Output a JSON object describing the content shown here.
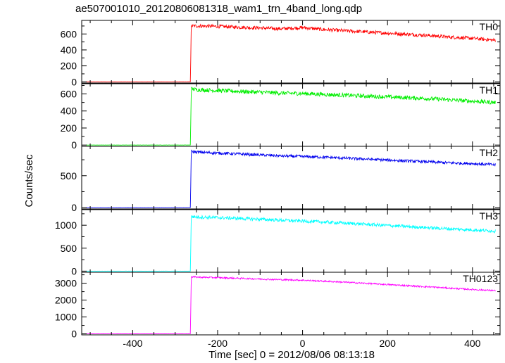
{
  "title": "ae507001010_20120806081318_wam1_trn_4band_long.qdp",
  "xlabel": "Time [sec] 0 = 2012/08/06 08:13:18",
  "ylabel": "Counts/sec",
  "chart_data": [
    {
      "type": "line",
      "name": "TH0",
      "color": "#ff0000",
      "xlim": [
        -520,
        465
      ],
      "ylim": [
        -15,
        770
      ],
      "yticks": [
        0,
        200,
        400,
        600
      ],
      "x": [
        -510,
        -270,
        -264,
        -262,
        -250,
        -200,
        -150,
        -100,
        -50,
        0,
        50,
        100,
        150,
        200,
        250,
        300,
        350,
        400,
        455
      ],
      "y": [
        0,
        0,
        0,
        700,
        700,
        695,
        685,
        675,
        665,
        680,
        655,
        640,
        625,
        610,
        595,
        580,
        560,
        545,
        520
      ],
      "noise": 22,
      "xticks": [
        -400,
        -200,
        0,
        200,
        400
      ]
    },
    {
      "type": "line",
      "name": "TH1",
      "color": "#00ee00",
      "xlim": [
        -520,
        465
      ],
      "ylim": [
        -15,
        720
      ],
      "yticks": [
        0,
        200,
        400,
        600
      ],
      "x": [
        -510,
        -270,
        -264,
        -262,
        -250,
        -200,
        -150,
        -100,
        -50,
        0,
        50,
        100,
        150,
        200,
        250,
        300,
        350,
        400,
        455
      ],
      "y": [
        0,
        0,
        0,
        660,
        650,
        640,
        630,
        620,
        610,
        605,
        595,
        585,
        575,
        565,
        555,
        545,
        530,
        515,
        500
      ],
      "noise": 24
    },
    {
      "type": "line",
      "name": "TH2",
      "color": "#0000ee",
      "xlim": [
        -520,
        465
      ],
      "ylim": [
        -20,
        960
      ],
      "yticks": [
        0,
        500
      ],
      "x": [
        -510,
        -270,
        -264,
        -262,
        -250,
        -200,
        -150,
        -100,
        -50,
        0,
        50,
        100,
        150,
        200,
        250,
        300,
        350,
        400,
        455
      ],
      "y": [
        0,
        0,
        0,
        880,
        870,
        855,
        840,
        825,
        810,
        800,
        790,
        775,
        760,
        745,
        730,
        715,
        700,
        690,
        670
      ],
      "noise": 22
    },
    {
      "type": "line",
      "name": "TH3",
      "color": "#00ffff",
      "xlim": [
        -520,
        465
      ],
      "ylim": [
        -25,
        1340
      ],
      "yticks": [
        0,
        500,
        1000
      ],
      "x": [
        -510,
        -270,
        -264,
        -262,
        -250,
        -200,
        -150,
        -100,
        -50,
        0,
        50,
        100,
        150,
        200,
        250,
        300,
        350,
        400,
        455
      ],
      "y": [
        0,
        0,
        0,
        1190,
        1180,
        1165,
        1150,
        1130,
        1110,
        1090,
        1070,
        1045,
        1020,
        995,
        970,
        945,
        920,
        900,
        870
      ],
      "noise": 35
    },
    {
      "type": "line",
      "name": "TH0123",
      "color": "#ff00ff",
      "xlim": [
        -520,
        465
      ],
      "ylim": [
        -60,
        3650
      ],
      "yticks": [
        0,
        1000,
        2000,
        3000
      ],
      "x": [
        -510,
        -270,
        -264,
        -262,
        -250,
        -200,
        -150,
        -100,
        -50,
        0,
        50,
        100,
        150,
        200,
        250,
        300,
        350,
        400,
        455
      ],
      "y": [
        0,
        0,
        0,
        3380,
        3360,
        3330,
        3290,
        3250,
        3210,
        3180,
        3120,
        3060,
        2990,
        2920,
        2850,
        2780,
        2700,
        2630,
        2560
      ],
      "noise": 45
    }
  ]
}
